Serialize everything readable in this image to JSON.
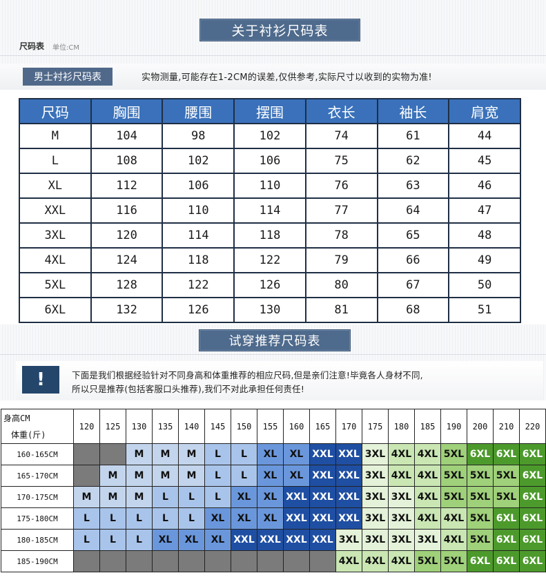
{
  "header": {
    "banner": "关于衬衫尺码表",
    "chart_title": "尺码表",
    "unit": "单位:CM",
    "sub_tag": "男士衬衫尺码表",
    "note": "实物测量,可能存在1-2CM的误差,仅供参考,实际尺寸以收到的实物为准!"
  },
  "size_table": {
    "headers": [
      "尺码",
      "胸围",
      "腰围",
      "摆围",
      "衣长",
      "袖长",
      "肩宽"
    ],
    "rows": [
      [
        "M",
        "104",
        "98",
        "102",
        "74",
        "61",
        "44"
      ],
      [
        "L",
        "108",
        "102",
        "106",
        "75",
        "62",
        "45"
      ],
      [
        "XL",
        "112",
        "106",
        "110",
        "76",
        "63",
        "46"
      ],
      [
        "XXL",
        "116",
        "110",
        "114",
        "77",
        "64",
        "47"
      ],
      [
        "3XL",
        "120",
        "114",
        "118",
        "78",
        "65",
        "48"
      ],
      [
        "4XL",
        "124",
        "118",
        "122",
        "79",
        "66",
        "49"
      ],
      [
        "5XL",
        "128",
        "122",
        "126",
        "80",
        "67",
        "50"
      ],
      [
        "6XL",
        "132",
        "126",
        "130",
        "81",
        "68",
        "51"
      ]
    ]
  },
  "recommend": {
    "banner": "试穿推荐尺码表",
    "alert_icon": "!",
    "note_line1": "下面是我们根据经验针对不同身高和体重推荐的相应尺码,但是亲们注意!毕竟各人身材不同,",
    "note_line2": "所以只是推荐(包括客服口头推荐),我们不对此承担任何责任!"
  },
  "grid": {
    "corner_height": "身高CM",
    "corner_weight": "体重(斤)",
    "weights": [
      "120",
      "125",
      "130",
      "135",
      "140",
      "145",
      "150",
      "155",
      "160",
      "165",
      "170",
      "175",
      "180",
      "185",
      "190",
      "200",
      "210",
      "220"
    ],
    "rows": [
      {
        "height": "160-165CM",
        "cells": [
          "",
          "",
          "M",
          "M",
          "M",
          "L",
          "L",
          "XL",
          "XL",
          "XXL",
          "XXL",
          "3XL",
          "4XL",
          "4XL",
          "5XL",
          "6XL",
          "6XL",
          "6XL"
        ]
      },
      {
        "height": "165-170CM",
        "cells": [
          "",
          "M",
          "M",
          "M",
          "M",
          "L",
          "L",
          "XL",
          "XL",
          "XXL",
          "XXL",
          "3XL",
          "4XL",
          "4XL",
          "5XL",
          "5XL",
          "5XL",
          "6XL"
        ]
      },
      {
        "height": "170-175CM",
        "cells": [
          "M",
          "M",
          "M",
          "L",
          "L",
          "L",
          "XL",
          "XL",
          "XXL",
          "XXL",
          "XXL",
          "3XL",
          "3XL",
          "4XL",
          "5XL",
          "5XL",
          "5XL",
          "6XL"
        ]
      },
      {
        "height": "175-180CM",
        "cells": [
          "L",
          "L",
          "L",
          "L",
          "L",
          "XL",
          "XL",
          "XL",
          "XXL",
          "XXL",
          "XXL",
          "3XL",
          "3XL",
          "4XL",
          "4XL",
          "5XL",
          "6XL",
          "6XL"
        ]
      },
      {
        "height": "180-185CM",
        "cells": [
          "L",
          "L",
          "L",
          "XL",
          "XL",
          "XL",
          "XXL",
          "XXL",
          "XXL",
          "XXL",
          "3XL",
          "3XL",
          "3XL",
          "3XL",
          "4XL",
          "5XL",
          "6XL",
          "6XL"
        ]
      },
      {
        "height": "185-190CM",
        "cells": [
          "",
          "",
          "",
          "",
          "",
          "",
          "",
          "",
          "",
          "",
          "4XL",
          "4XL",
          "4XL",
          "5XL",
          "5XL",
          "6XL",
          "6XL",
          "6XL"
        ]
      }
    ],
    "size_colors": {
      "none": "#7b7b7b",
      "M": "#c3d5ec",
      "L": "#a9c4ea",
      "XL": "#6a97dc",
      "XXL": "#1f4fa3",
      "3XL": "#e4f2d9",
      "4XL": "#c9e6b3",
      "5XL": "#9fd07a",
      "6XL": "#4d9a2c"
    }
  }
}
